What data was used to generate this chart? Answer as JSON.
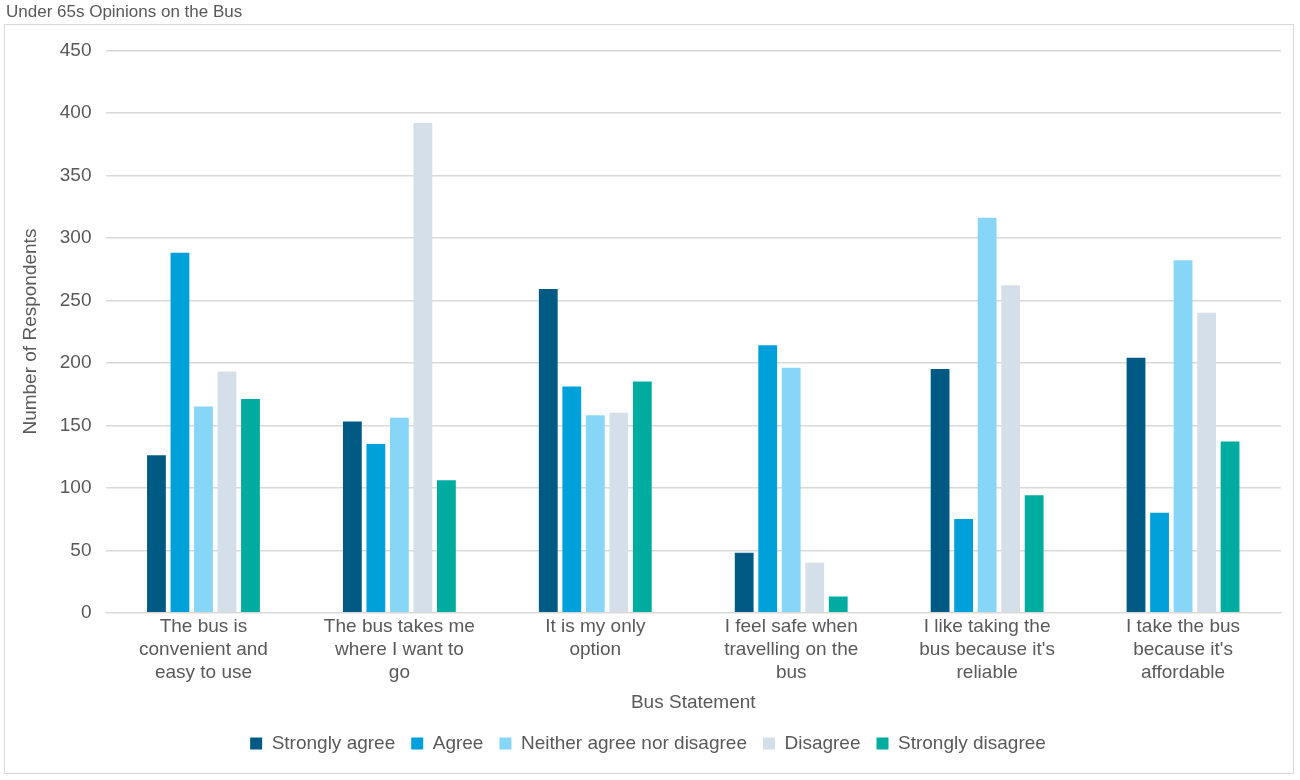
{
  "chart_data": {
    "type": "bar",
    "title": "Under 65s Opinions on the Bus",
    "xlabel": "Bus Statement",
    "ylabel": "Number of Respondents",
    "categories": [
      "The bus is convenient and easy to use",
      "The bus takes me where I want to go",
      "It is my only option",
      "I feel safe when travelling on the bus",
      "I like taking the bus because it's reliable",
      "I take the bus because it's affordable"
    ],
    "series": [
      {
        "name": "Strongly agree",
        "color": "#005a84",
        "values": [
          126,
          153,
          259,
          48,
          195,
          204
        ]
      },
      {
        "name": "Agree",
        "color": "#00a1db",
        "values": [
          288,
          135,
          181,
          214,
          75,
          80
        ]
      },
      {
        "name": "Neither agree nor disagree",
        "color": "#87d5f7",
        "values": [
          165,
          156,
          158,
          196,
          316,
          282
        ]
      },
      {
        "name": "Disagree",
        "color": "#d4dfea",
        "values": [
          193,
          392,
          160,
          40,
          262,
          240
        ]
      },
      {
        "name": "Strongly disagree",
        "color": "#00aba0",
        "values": [
          171,
          106,
          185,
          13,
          94,
          137
        ]
      }
    ],
    "ylim": [
      0,
      450
    ],
    "yticks": [
      0,
      50,
      100,
      150,
      200,
      250,
      300,
      350,
      400,
      450
    ],
    "grid": "y",
    "legend": "bottom"
  }
}
